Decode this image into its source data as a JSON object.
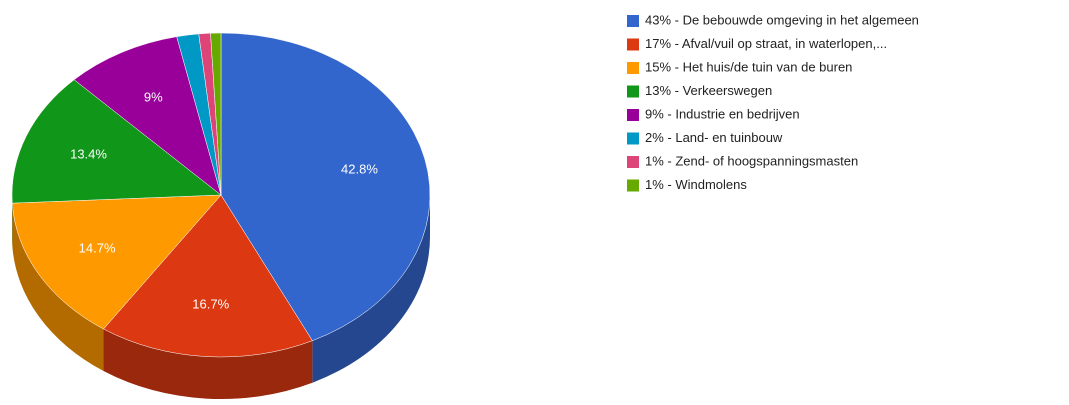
{
  "chart_data": {
    "type": "pie",
    "categories": [
      "43% - De bebouwde omgeving in het algemeen",
      "17% - Afval/vuil op straat, in waterlopen,...",
      "15% - Het huis/de tuin van de buren",
      "13% - Verkeerswegen",
      "9% - Industrie en bedrijven",
      "2% - Land- en tuinbouw",
      "1% - Zend- of hoogspanningsmasten",
      "1% - Windmolens"
    ],
    "values": [
      42.8,
      16.7,
      14.7,
      13.4,
      9,
      1.7,
      0.9,
      0.8
    ],
    "value_labels": [
      "42.8%",
      "16.7%",
      "14.7%",
      "13.4%",
      "9%",
      null,
      null,
      null
    ],
    "colors": [
      "#3366cc",
      "#dc3912",
      "#ff9900",
      "#109618",
      "#990099",
      "#0099c6",
      "#dd4477",
      "#66aa00"
    ],
    "legend": "right"
  }
}
